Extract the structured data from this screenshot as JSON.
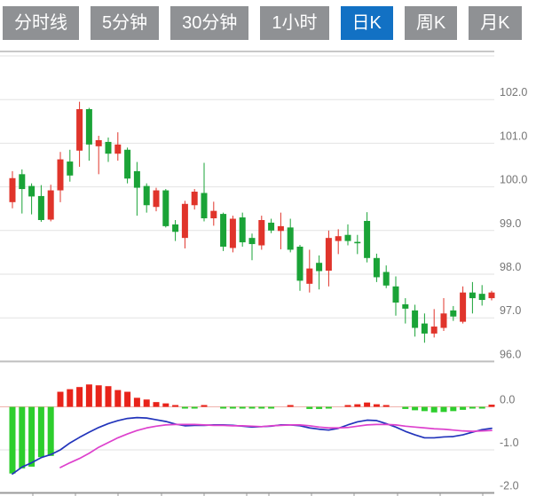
{
  "toolbar": {
    "tabs": [
      {
        "label": "分时线",
        "active": false
      },
      {
        "label": "5分钟",
        "active": false
      },
      {
        "label": "30分钟",
        "active": false
      },
      {
        "label": "1小时",
        "active": false
      },
      {
        "label": "日K",
        "active": true
      },
      {
        "label": "周K",
        "active": false
      },
      {
        "label": "月K",
        "active": false
      }
    ]
  },
  "colors": {
    "up": "#e0342b",
    "down": "#1aa337",
    "macd_up": "#e8231a",
    "macd_down": "#2dce2d",
    "dif_line": "#2234bb",
    "dea_line": "#dd41cd",
    "grid": "#e2e2e2",
    "axis_text": "#757575",
    "zero_line": "#efb3ad",
    "chart_border": "#b5b5b5",
    "axis_line": "#9a9a9a",
    "tab_bg": "#8f9194",
    "tab_active_bg": "#1271c4",
    "tab_text": "#ffffff"
  },
  "chart_data": {
    "type": "candlestick",
    "title": "",
    "xlabel": "",
    "ylabel": "",
    "grid": true,
    "legend": "none",
    "price_axis": {
      "tick_labels": [
        "102.0",
        "101.0",
        "100.0",
        "99.0",
        "98.0",
        "97.0",
        "96.0"
      ],
      "tick_values": [
        102,
        101,
        100,
        99,
        98,
        97,
        96
      ],
      "range": [
        95.9,
        103.0
      ]
    },
    "macd_axis": {
      "tick_labels": [
        "0.0",
        "-1.0",
        "-2.0"
      ],
      "tick_values": [
        0,
        -1,
        -2
      ],
      "range": [
        -2.0,
        0.55
      ]
    },
    "candles": [
      [
        99.65,
        100.36,
        99.51,
        100.2
      ],
      [
        100.29,
        100.4,
        99.39,
        99.95
      ],
      [
        100.02,
        100.08,
        99.37,
        99.78
      ],
      [
        99.79,
        100.04,
        99.2,
        99.24
      ],
      [
        99.25,
        100.05,
        99.21,
        99.92
      ],
      [
        99.92,
        100.8,
        99.65,
        100.63
      ],
      [
        100.58,
        100.85,
        100.12,
        100.26
      ],
      [
        100.83,
        101.95,
        100.46,
        101.78
      ],
      [
        101.78,
        101.81,
        100.6,
        100.97
      ],
      [
        100.93,
        101.17,
        100.29,
        101.07
      ],
      [
        101.03,
        101.13,
        100.57,
        100.76
      ],
      [
        100.76,
        101.25,
        100.6,
        100.97
      ],
      [
        100.85,
        100.9,
        100.08,
        100.19
      ],
      [
        100.36,
        100.57,
        99.34,
        99.98
      ],
      [
        100.02,
        100.08,
        99.41,
        99.58
      ],
      [
        99.54,
        99.98,
        99.44,
        99.92
      ],
      [
        99.92,
        99.95,
        99.07,
        99.1
      ],
      [
        99.14,
        99.24,
        98.76,
        98.97
      ],
      [
        98.83,
        99.68,
        98.59,
        99.61
      ],
      [
        99.58,
        99.95,
        99.48,
        99.89
      ],
      [
        99.86,
        100.55,
        99.21,
        99.28
      ],
      [
        99.28,
        99.66,
        99.11,
        99.45
      ],
      [
        99.38,
        99.41,
        98.53,
        98.63
      ],
      [
        98.6,
        99.34,
        98.5,
        99.27
      ],
      [
        99.3,
        99.41,
        98.63,
        98.73
      ],
      [
        98.83,
        98.93,
        98.32,
        98.69
      ],
      [
        98.66,
        99.34,
        98.56,
        99.24
      ],
      [
        99.18,
        99.27,
        98.94,
        99.0
      ],
      [
        98.99,
        99.41,
        98.57,
        99.1
      ],
      [
        99.07,
        99.27,
        98.5,
        98.56
      ],
      [
        98.63,
        98.67,
        97.62,
        97.85
      ],
      [
        97.78,
        98.56,
        97.58,
        98.13
      ],
      [
        98.26,
        98.43,
        97.65,
        98.07
      ],
      [
        98.08,
        99.0,
        97.72,
        98.83
      ],
      [
        98.76,
        99.03,
        98.46,
        98.87
      ],
      [
        98.9,
        99.14,
        98.66,
        98.76
      ],
      [
        98.74,
        98.9,
        98.46,
        98.73
      ],
      [
        99.22,
        99.42,
        98.27,
        98.37
      ],
      [
        98.37,
        98.47,
        97.82,
        97.93
      ],
      [
        98.05,
        98.2,
        97.68,
        97.74
      ],
      [
        97.72,
        97.95,
        97.05,
        97.35
      ],
      [
        97.31,
        97.45,
        96.87,
        97.21
      ],
      [
        97.17,
        97.3,
        96.57,
        96.77
      ],
      [
        96.87,
        97.1,
        96.43,
        96.64
      ],
      [
        96.64,
        97.2,
        96.55,
        96.8
      ],
      [
        96.77,
        97.45,
        96.7,
        97.1
      ],
      [
        97.17,
        97.27,
        96.93,
        97.03
      ],
      [
        96.91,
        97.72,
        96.87,
        97.58
      ],
      [
        97.58,
        97.82,
        97.1,
        97.45
      ],
      [
        97.55,
        97.75,
        97.28,
        97.41
      ],
      [
        97.45,
        97.62,
        97.4,
        97.58
      ]
    ],
    "macd": {
      "histogram": [
        -1.55,
        -1.43,
        -1.39,
        -1.17,
        -1.14,
        0.35,
        0.41,
        0.46,
        0.52,
        0.5,
        0.48,
        0.39,
        0.35,
        0.21,
        0.17,
        0.11,
        0.08,
        0.03,
        -0.03,
        -0.03,
        0.02,
        0,
        -0.02,
        -0.04,
        -0.04,
        -0.04,
        -0.04,
        -0.03,
        0,
        0.02,
        0,
        -0.05,
        -0.05,
        -0.04,
        0,
        0.04,
        0.06,
        0.1,
        0.06,
        0.03,
        0,
        -0.05,
        -0.08,
        -0.1,
        -0.13,
        -0.12,
        -0.1,
        -0.07,
        -0.04,
        -0.02,
        0.05
      ],
      "dif": [
        -1.56,
        -1.4,
        -1.3,
        -1.18,
        -1.11,
        -1.0,
        -0.84,
        -0.71,
        -0.59,
        -0.48,
        -0.39,
        -0.32,
        -0.27,
        -0.25,
        -0.26,
        -0.3,
        -0.34,
        -0.4,
        -0.44,
        -0.43,
        -0.43,
        -0.42,
        -0.42,
        -0.43,
        -0.45,
        -0.47,
        -0.46,
        -0.45,
        -0.42,
        -0.42,
        -0.44,
        -0.49,
        -0.52,
        -0.54,
        -0.5,
        -0.42,
        -0.35,
        -0.31,
        -0.32,
        -0.39,
        -0.47,
        -0.57,
        -0.65,
        -0.72,
        -0.72,
        -0.7,
        -0.69,
        -0.65,
        -0.59,
        -0.53,
        -0.5
      ],
      "dea": [
        null,
        null,
        null,
        null,
        null,
        -1.41,
        -1.3,
        -1.2,
        -1.08,
        -0.94,
        -0.83,
        -0.72,
        -0.63,
        -0.55,
        -0.49,
        -0.45,
        -0.42,
        -0.41,
        -0.41,
        -0.41,
        -0.42,
        -0.43,
        -0.43,
        -0.44,
        -0.44,
        -0.45,
        -0.46,
        -0.44,
        -0.43,
        -0.42,
        -0.42,
        -0.44,
        -0.47,
        -0.49,
        -0.49,
        -0.48,
        -0.45,
        -0.42,
        -0.41,
        -0.41,
        -0.42,
        -0.45,
        -0.47,
        -0.49,
        -0.51,
        -0.52,
        -0.54,
        -0.56,
        -0.57,
        -0.56,
        -0.55
      ]
    }
  }
}
